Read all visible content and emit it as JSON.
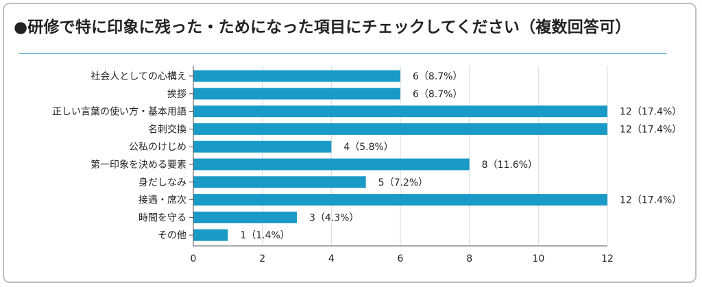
{
  "title": "●研修で特に印象に残った・ためになった項目にチェックしてください（複数回答可）",
  "colors": {
    "bar": "#1a9ac6",
    "grid": "#d9d9d9",
    "axis": "#555555",
    "divider": "#2aa0c8"
  },
  "chart_data": {
    "type": "bar",
    "orientation": "horizontal",
    "categories": [
      "社会人としての心構え",
      "挨拶",
      "正しい言葉の使い方・基本用語",
      "名刺交換",
      "公私のけじめ",
      "第一印象を決める要素",
      "身だしなみ",
      "接遇・席次",
      "時間を守る",
      "その他"
    ],
    "values": [
      6,
      6,
      12,
      12,
      4,
      8,
      5,
      12,
      3,
      1
    ],
    "data_labels": [
      "6（8.7%）",
      "6（8.7%）",
      "12（17.4%）",
      "12（17.4%）",
      "4（5.8%）",
      "8（11.6%）",
      "5（7.2%）",
      "12（17.4%）",
      "3（4.3%）",
      "1（1.4%）"
    ],
    "xticks": [
      "0",
      "2",
      "4",
      "6",
      "8",
      "10",
      "12"
    ],
    "xlim": [
      0,
      12
    ],
    "grid": true
  }
}
